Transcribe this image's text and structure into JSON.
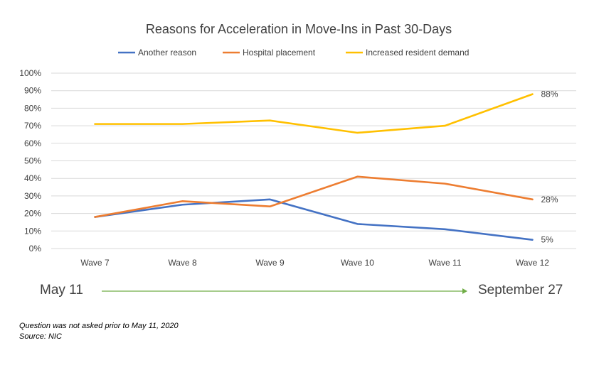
{
  "chart_data": {
    "type": "line",
    "title": "Reasons for Acceleration in Move-Ins in Past 30-Days",
    "categories": [
      "Wave 7",
      "Wave 8",
      "Wave 9",
      "Wave 10",
      "Wave 11",
      "Wave 12"
    ],
    "series": [
      {
        "name": "Another reason",
        "color": "#4472c4",
        "values": [
          18,
          25,
          28,
          14,
          11,
          5
        ],
        "end_label": "5%"
      },
      {
        "name": "Hospital placement",
        "color": "#ed7d31",
        "values": [
          18,
          27,
          24,
          41,
          37,
          28
        ],
        "end_label": "28%"
      },
      {
        "name": "Increased resident demand",
        "color": "#ffc000",
        "values": [
          71,
          71,
          73,
          66,
          70,
          88
        ],
        "end_label": "88%"
      }
    ],
    "yticks": [
      "0%",
      "10%",
      "20%",
      "30%",
      "40%",
      "50%",
      "60%",
      "70%",
      "80%",
      "90%",
      "100%"
    ],
    "ylim": [
      0,
      100
    ],
    "grid": true,
    "legend_position": "top"
  },
  "timeline": {
    "start": "May 11",
    "end": "September 27",
    "arrow_color": "#70ad47"
  },
  "footnotes": {
    "note": "Question was not asked prior to May 11, 2020",
    "source": "Source: NIC"
  }
}
